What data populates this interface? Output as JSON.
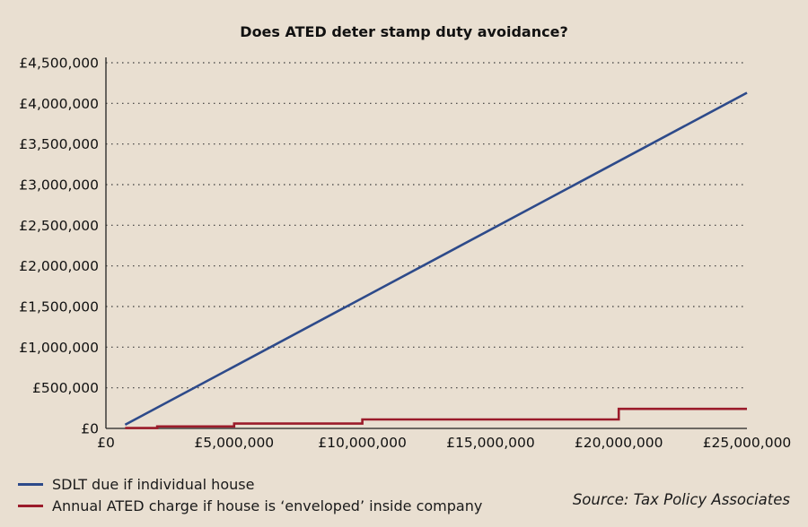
{
  "chart_data": {
    "type": "line",
    "title": "Does ATED deter stamp duty avoidance?",
    "xlabel": "",
    "ylabel": "",
    "xlim": [
      0,
      25000000
    ],
    "ylim": [
      0,
      4500000
    ],
    "grid": true,
    "x_ticks": [
      0,
      5000000,
      10000000,
      15000000,
      20000000,
      25000000
    ],
    "x_tick_labels": [
      "£0",
      "£5,000,000",
      "£10,000,000",
      "£15,000,000",
      "£20,000,000",
      "£25,000,000"
    ],
    "y_ticks": [
      0,
      500000,
      1000000,
      1500000,
      2000000,
      2500000,
      3000000,
      3500000,
      4000000,
      4500000
    ],
    "y_tick_labels": [
      "£0",
      "£500,000",
      "£1,000,000",
      "£1,500,000",
      "£2,000,000",
      "£2,500,000",
      "£3,000,000",
      "£3,500,000",
      "£4,000,000",
      "£4,500,000"
    ],
    "series": [
      {
        "name": "SDLT due if individual house",
        "color": "#2d4a8a",
        "x": [
          750000,
          25000000
        ],
        "values": [
          45000,
          4130000
        ]
      },
      {
        "name": "Annual ATED charge if house is ‘enveloped’ inside company",
        "color": "#9b1b2a",
        "x": [
          750000,
          2000000,
          2000000,
          5000000,
          5000000,
          10000000,
          10000000,
          20000000,
          20000000,
          25000000
        ],
        "values": [
          4000,
          4000,
          24000,
          24000,
          60000,
          60000,
          110000,
          110000,
          240000,
          240000
        ]
      }
    ]
  },
  "legend": {
    "sdlt_label": "SDLT due if individual house",
    "ated_label": "Annual ATED charge if house is ‘enveloped’ inside company"
  },
  "source": "Source: Tax Policy Associates"
}
